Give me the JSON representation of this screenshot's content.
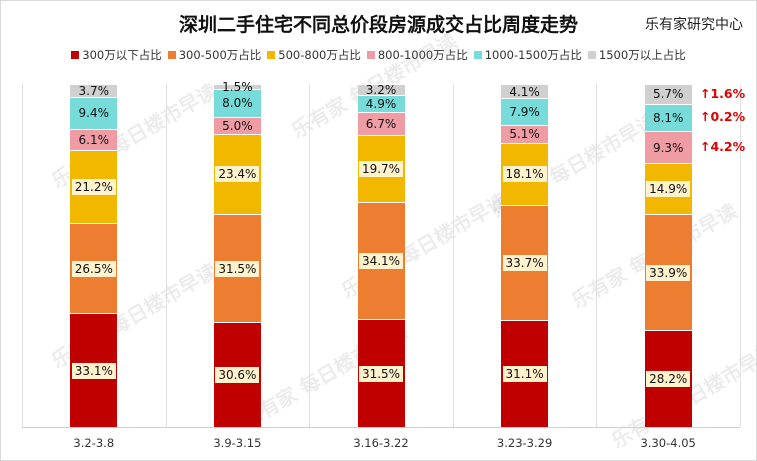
{
  "header": {
    "title": "深圳二手住宅不同总价段房源成交占比周度走势",
    "source": "乐有家研究中心"
  },
  "legend": [
    {
      "label": "300万以下占比",
      "color": "#c00000"
    },
    {
      "label": "300-500万占比",
      "color": "#ed7d31"
    },
    {
      "label": "500-800万占比",
      "color": "#f2b800"
    },
    {
      "label": "800-1000万占比",
      "color": "#f09ca4"
    },
    {
      "label": "1000-1500万占比",
      "color": "#76dbd9"
    },
    {
      "label": "1500万以上占比",
      "color": "#d0d0d0"
    }
  ],
  "watermark": "乐有家 每日楼市早读",
  "chart_data": {
    "type": "bar",
    "stacked": true,
    "title": "深圳二手住宅不同总价段房源成交占比周度走势",
    "source": "乐有家研究中心",
    "categories": [
      "3.2-3.8",
      "3.9-3.15",
      "3.16-3.22",
      "3.23-3.29",
      "3.30-4.05"
    ],
    "series": [
      {
        "name": "300万以下占比",
        "values": [
          33.1,
          30.6,
          31.5,
          31.1,
          28.2
        ]
      },
      {
        "name": "300-500万占比",
        "values": [
          26.5,
          31.5,
          34.1,
          33.7,
          33.9
        ]
      },
      {
        "name": "500-800万占比",
        "values": [
          21.2,
          23.4,
          19.7,
          18.1,
          14.9
        ]
      },
      {
        "name": "800-1000万占比",
        "values": [
          6.1,
          5.0,
          6.7,
          5.1,
          9.3
        ]
      },
      {
        "name": "1000-1500万占比",
        "values": [
          9.4,
          8.0,
          4.9,
          7.9,
          8.1
        ]
      },
      {
        "name": "1500万以上占比",
        "values": [
          3.7,
          1.5,
          3.2,
          4.1,
          5.7
        ]
      }
    ],
    "annotations": [
      {
        "series": "1500万以上占比",
        "text": "↑1.6%"
      },
      {
        "series": "1000-1500万占比",
        "text": "↑0.2%"
      },
      {
        "series": "800-1000万占比",
        "text": "↑4.2%"
      }
    ],
    "ylim": [
      0,
      100
    ],
    "legend_position": "top",
    "grid": false,
    "xlabel": "",
    "ylabel": ""
  }
}
